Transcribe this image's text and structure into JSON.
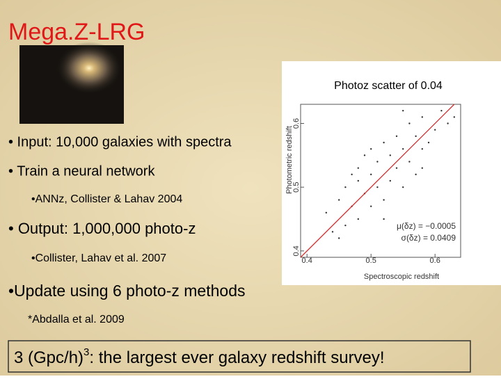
{
  "slide": {
    "title": "Mega.Z-LRG",
    "bullets": [
      {
        "text": "• Input: 10,000 galaxies with spectra",
        "level": 1
      },
      {
        "text": "• Train a neural network",
        "level": 1
      },
      {
        "text": "•ANNz, Collister & Lahav 2004",
        "level": 2
      },
      {
        "text": "• Output:  1,000,000 photo-z",
        "level": 1
      },
      {
        "text": "•Collister, Lahav et al. 2007",
        "level": 2
      },
      {
        "text": "•Update using 6 photo-z methods",
        "level": 1
      },
      {
        "text": "*Abdalla et al. 2009",
        "level": 2
      }
    ],
    "footer": [
      "3 (Gpc/h)",
      "3",
      ": the largest ever galaxy redshift survey!"
    ]
  },
  "chart_data": {
    "type": "scatter",
    "title": "Photoz scatter of 0.04",
    "x_label": "Spectroscopic redshift",
    "y_label": "Photometric redshift",
    "annotations": [
      "μ(δz) = −0.0005",
      "σ(δz) = 0.0409"
    ],
    "xlim": [
      0.39,
      0.64
    ],
    "ylim": [
      0.39,
      0.63
    ],
    "xticks": [
      0.4,
      0.5,
      0.6
    ],
    "yticks": [
      0.4,
      0.5,
      0.6
    ],
    "color": "#333333",
    "line_color": "#d03030",
    "x": [
      0.43,
      0.44,
      0.45,
      0.46,
      0.46,
      0.47,
      0.47,
      0.48,
      0.48,
      0.49,
      0.49,
      0.5,
      0.5,
      0.5,
      0.51,
      0.51,
      0.52,
      0.52,
      0.53,
      0.53,
      0.54,
      0.54,
      0.55,
      0.55,
      0.56,
      0.56,
      0.57,
      0.57,
      0.58,
      0.58,
      0.59,
      0.6,
      0.61,
      0.62,
      0.63,
      0.45,
      0.48,
      0.52,
      0.55,
      0.58
    ],
    "values": [
      0.46,
      0.43,
      0.48,
      0.44,
      0.5,
      0.47,
      0.52,
      0.45,
      0.51,
      0.49,
      0.55,
      0.47,
      0.52,
      0.56,
      0.5,
      0.54,
      0.48,
      0.57,
      0.51,
      0.55,
      0.53,
      0.58,
      0.5,
      0.56,
      0.54,
      0.6,
      0.52,
      0.58,
      0.56,
      0.61,
      0.57,
      0.59,
      0.62,
      0.6,
      0.61,
      0.42,
      0.53,
      0.45,
      0.62,
      0.53
    ]
  }
}
